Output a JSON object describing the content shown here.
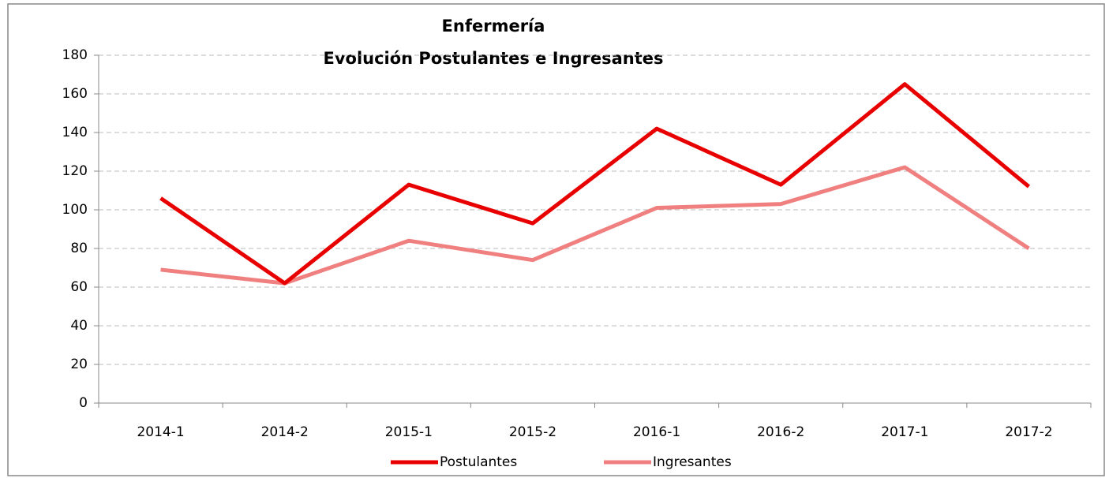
{
  "chart_data": {
    "type": "line",
    "title": "Enfermería",
    "subtitle": "Evolución Postulantes e Ingresantes",
    "categories": [
      "2014-1",
      "2014-2",
      "2015-1",
      "2015-2",
      "2016-1",
      "2016-2",
      "2017-1",
      "2017-2"
    ],
    "series": [
      {
        "name": "Postulantes",
        "color": "#e80000",
        "values": [
          106,
          62,
          113,
          93,
          142,
          113,
          165,
          112
        ]
      },
      {
        "name": "Ingresantes",
        "color": "#f08080",
        "values": [
          69,
          62,
          84,
          74,
          101,
          103,
          122,
          80
        ]
      }
    ],
    "ylim": [
      0,
      180
    ],
    "yticks": [
      0,
      20,
      40,
      60,
      80,
      100,
      120,
      140,
      160,
      180
    ],
    "grid": true,
    "legend": "bottom"
  }
}
